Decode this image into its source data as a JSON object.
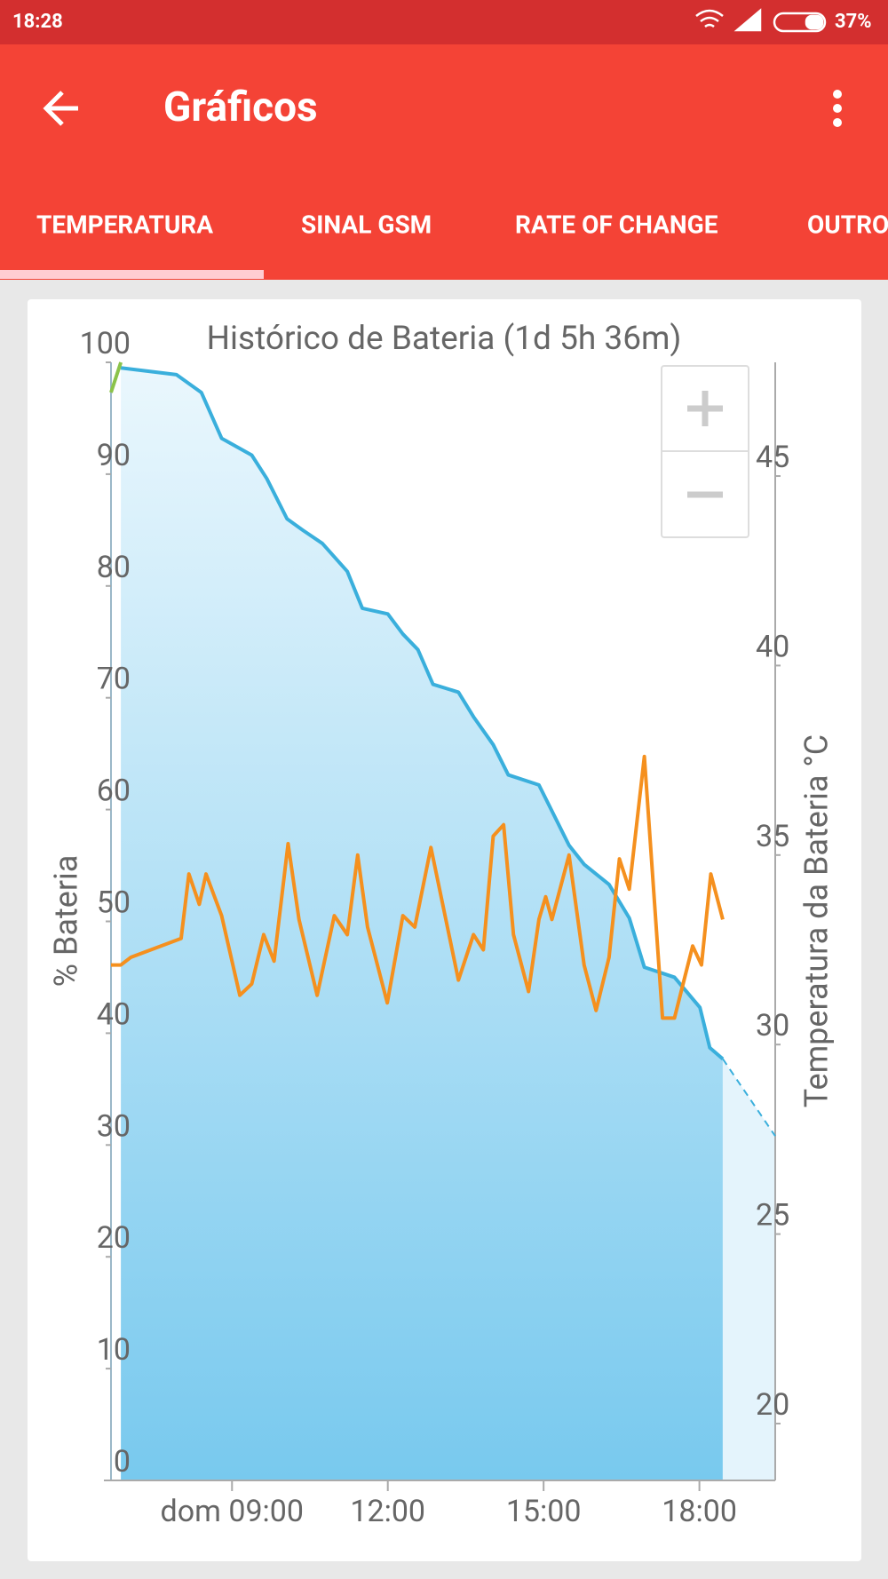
{
  "status_bar": {
    "time": "18:28",
    "battery": "37%"
  },
  "toolbar": {
    "title": "Gráficos"
  },
  "tabs": [
    "TEMPERATURA",
    "SINAL GSM",
    "RATE OF CHANGE",
    "OUTRO"
  ],
  "chart_data": {
    "type": "line",
    "title": "Histórico de Bateria (1d 5h 36m)",
    "y_label": "% Bateria",
    "y2_label": "Temperatura da Bateria °C",
    "xlim": [
      6.67,
      19.46
    ],
    "xticks": [
      {
        "value": 9,
        "label": "dom 09:00"
      },
      {
        "value": 12,
        "label": "12:00"
      },
      {
        "value": 15,
        "label": "15:00"
      },
      {
        "value": 18,
        "label": "18:00"
      }
    ],
    "ylim": [
      0,
      100
    ],
    "yticks": [
      0,
      10,
      20,
      30,
      40,
      50,
      60,
      70,
      80,
      90,
      100
    ],
    "y2lim": [
      18.5,
      48
    ],
    "y2ticks": [
      20,
      25,
      30,
      35,
      40,
      45
    ],
    "series": [
      {
        "color": "#3aafdc",
        "area": true,
        "x": [
          6.86,
          7.93,
          8.41,
          8.8,
          9.38,
          9.67,
          10.06,
          10.36,
          10.74,
          11.22,
          11.51,
          12.0,
          12.29,
          12.58,
          12.87,
          13.36,
          13.65,
          14.03,
          14.32,
          14.91,
          15.2,
          15.49,
          15.78,
          16.26,
          16.65,
          16.94,
          17.52,
          18.01,
          18.2,
          18.45
        ],
        "values": [
          99.5,
          98.9,
          97.3,
          93.2,
          91.7,
          89.6,
          86.0,
          85.0,
          83.8,
          81.3,
          78.0,
          77.5,
          75.7,
          74.3,
          71.2,
          70.5,
          68.3,
          65.8,
          63.1,
          62.2,
          59.5,
          56.8,
          55.1,
          53.3,
          50.3,
          45.9,
          45.0,
          42.3,
          38.7,
          37.7
        ]
      },
      {
        "color": "#3aafdc",
        "dashed": true,
        "area": true,
        "x": [
          18.45,
          19.46
        ],
        "values": [
          37.7,
          30.8
        ]
      },
      {
        "color": "#8bc34a",
        "x": [
          6.67,
          6.86
        ],
        "values": [
          97.3,
          100
        ]
      },
      {
        "color": "#f5901e",
        "axis": "y2",
        "x": [
          6.67,
          6.86,
          7.05,
          8.02,
          8.17,
          8.37,
          8.5,
          8.8,
          9.15,
          9.38,
          9.61,
          9.81,
          10.08,
          10.29,
          10.64,
          10.97,
          11.22,
          11.42,
          11.61,
          11.99,
          12.29,
          12.52,
          12.83,
          13.36,
          13.65,
          13.84,
          14.03,
          14.23,
          14.42,
          14.71,
          14.91,
          15.04,
          15.16,
          15.49,
          15.78,
          16.01,
          16.26,
          16.46,
          16.65,
          16.94,
          17.29,
          17.52,
          17.87,
          18.04,
          18.22,
          18.45
        ],
        "values": [
          32.1,
          32.1,
          32.3,
          32.8,
          34.5,
          33.7,
          34.5,
          33.4,
          31.3,
          31.6,
          32.9,
          32.2,
          35.3,
          33.3,
          31.3,
          33.4,
          32.9,
          35.0,
          33.1,
          31.1,
          33.4,
          33.1,
          35.2,
          31.7,
          32.9,
          32.5,
          35.5,
          35.8,
          32.9,
          31.4,
          33.3,
          33.9,
          33.3,
          35.0,
          32.1,
          30.9,
          32.3,
          34.9,
          34.1,
          37.6,
          30.7,
          30.7,
          32.6,
          32.1,
          34.5,
          33.3
        ]
      }
    ]
  }
}
